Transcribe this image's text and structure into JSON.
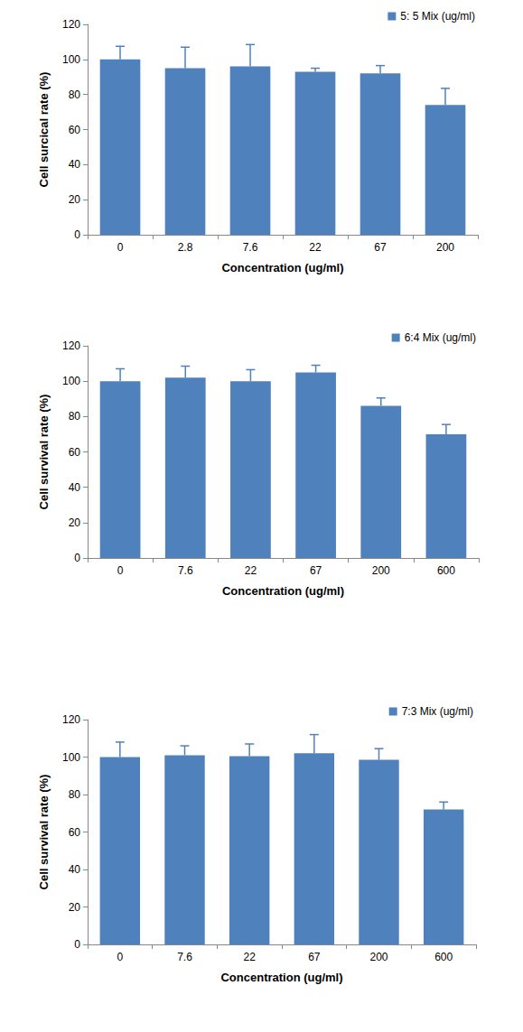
{
  "chart_data": [
    {
      "type": "bar",
      "x_label": "Concentration (ug/ml)",
      "y_label": "Cell surcical rate (%)",
      "categories": [
        "0",
        "2.8",
        "7.6",
        "22",
        "67",
        "200"
      ],
      "series": [
        {
          "name": "5: 5 Mix (ug/ml)",
          "color": "#4f81bd",
          "values": [
            100,
            95,
            96,
            93,
            92,
            74
          ],
          "errors": [
            7.5,
            12,
            12.5,
            2,
            4.5,
            9.5
          ]
        }
      ],
      "ylim": [
        0,
        120
      ],
      "yticks": [
        0,
        20,
        40,
        60,
        80,
        100,
        120
      ],
      "grid": false,
      "legend": "upper right"
    },
    {
      "type": "bar",
      "x_label": "Concentration (ug/ml)",
      "y_label": "Cell survival rate (%)",
      "categories": [
        "0",
        "7.6",
        "22",
        "67",
        "200",
        "600"
      ],
      "series": [
        {
          "name": "6:4 Mix (ug/ml)",
          "color": "#4f81bd",
          "values": [
            100,
            102,
            100,
            105,
            86,
            70
          ],
          "errors": [
            7,
            6.5,
            6.5,
            4,
            4.5,
            5.5
          ]
        }
      ],
      "ylim": [
        0,
        120
      ],
      "yticks": [
        0,
        20,
        40,
        60,
        80,
        100,
        120
      ],
      "grid": false,
      "legend": "upper right"
    },
    {
      "type": "bar",
      "x_label": "Concentration (ug/ml)",
      "y_label": "Cell survival rate (%)",
      "categories": [
        "0",
        "7.6",
        "22",
        "67",
        "200",
        "600"
      ],
      "series": [
        {
          "name": "7:3 Mix (ug/ml)",
          "color": "#4f81bd",
          "values": [
            100,
            101,
            100.5,
            102,
            98.5,
            72
          ],
          "errors": [
            8,
            5,
            6.5,
            10,
            6,
            4
          ]
        }
      ],
      "ylim": [
        0,
        120
      ],
      "yticks": [
        0,
        20,
        40,
        60,
        80,
        100,
        120
      ],
      "grid": false,
      "legend": "upper right"
    }
  ]
}
